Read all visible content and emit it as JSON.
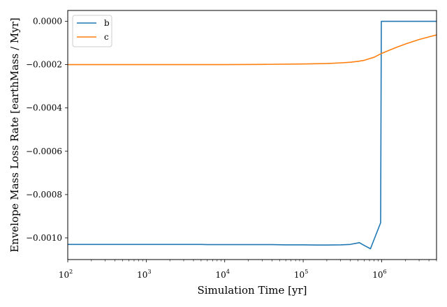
{
  "chart_data": {
    "type": "line",
    "xscale": "log",
    "xlabel": "Simulation Time [yr]",
    "ylabel": "Envelope Mass Loss Rate [earthMass / Myr]",
    "xlim": [
      100,
      5000000
    ],
    "ylim": [
      -0.0011,
      5e-05
    ],
    "x_ticks": [
      {
        "value": 100,
        "base": "10",
        "exp": "2"
      },
      {
        "value": 1000,
        "base": "10",
        "exp": "3"
      },
      {
        "value": 10000,
        "base": "10",
        "exp": "4"
      },
      {
        "value": 100000,
        "base": "10",
        "exp": "5"
      },
      {
        "value": 1000000,
        "base": "10",
        "exp": "6"
      }
    ],
    "y_ticks": [
      {
        "value": 0.0,
        "label": "0.0000"
      },
      {
        "value": -0.0002,
        "label": "−0.0002"
      },
      {
        "value": -0.0004,
        "label": "−0.0004"
      },
      {
        "value": -0.0006,
        "label": "−0.0006"
      },
      {
        "value": -0.0008,
        "label": "−0.0008"
      },
      {
        "value": -0.001,
        "label": "−0.0010"
      }
    ],
    "grid": false,
    "legend": "top-left",
    "series": [
      {
        "name": "b",
        "color": "#1f77b4",
        "x": [
          100,
          1000,
          5000,
          6000,
          10000,
          40000,
          60000,
          100000,
          150000,
          200000,
          300000,
          400000,
          520000,
          600000,
          720000,
          970000,
          990000,
          1000000,
          5000000
        ],
        "y": [
          -0.00103,
          -0.00103,
          -0.00103,
          -0.001031,
          -0.001031,
          -0.001031,
          -0.001032,
          -0.001032,
          -0.001033,
          -0.001033,
          -0.001032,
          -0.00103,
          -0.001022,
          -0.001035,
          -0.00105,
          -0.00093,
          0.0,
          0.0,
          0.0
        ]
      },
      {
        "name": "c",
        "color": "#ff7f0e",
        "x": [
          100,
          1000,
          10000,
          30000,
          100000,
          200000,
          300000,
          400000,
          500000,
          600000,
          800000,
          1000000,
          1500000,
          2000000,
          3000000,
          4000000,
          5000000
        ],
        "y": [
          -0.0002,
          -0.0002,
          -0.0002,
          -0.000199,
          -0.000197,
          -0.000195,
          -0.000192,
          -0.000189,
          -0.000185,
          -0.00018,
          -0.000166,
          -0.000148,
          -0.000122,
          -0.000105,
          -8.4e-05,
          -7.2e-05,
          -6.3e-05
        ]
      }
    ]
  }
}
